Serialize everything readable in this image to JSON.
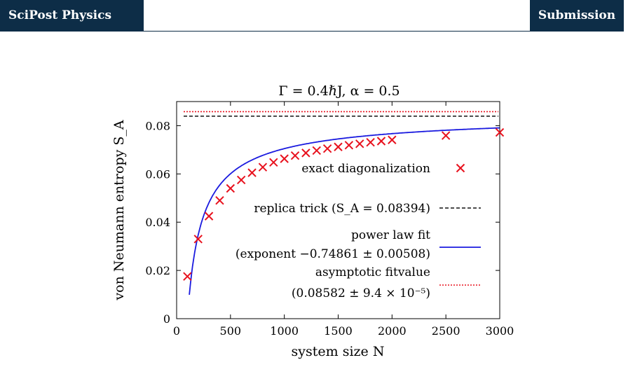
{
  "header": {
    "left_tag": "SciPost Physics",
    "right_tag": "Submission"
  },
  "chart_data": {
    "type": "scatter",
    "title": "Γ = 0.4ℏJ,  α = 0.5",
    "xlabel": "system size N",
    "ylabel": "von Neumann entropy S_A",
    "xlim": [
      0,
      3000
    ],
    "ylim": [
      0,
      0.09
    ],
    "xticks": [
      "0",
      "500",
      "1000",
      "1500",
      "2000",
      "2500",
      "3000"
    ],
    "yticks": [
      "0",
      "0.02",
      "0.04",
      "0.06",
      "0.08"
    ],
    "grid": false,
    "legend_position": "center-right",
    "series": [
      {
        "name": "exact diagonalization",
        "kind": "markers",
        "marker": "x",
        "color": "#e8121e",
        "x": [
          100,
          200,
          300,
          400,
          500,
          600,
          700,
          800,
          900,
          1000,
          1100,
          1200,
          1300,
          1400,
          1500,
          1600,
          1700,
          1800,
          1900,
          2000,
          2500,
          3000
        ],
        "y": [
          0.0175,
          0.033,
          0.0425,
          0.049,
          0.054,
          0.0575,
          0.0605,
          0.0628,
          0.0648,
          0.0663,
          0.0676,
          0.0687,
          0.0697,
          0.0705,
          0.0712,
          0.0719,
          0.0725,
          0.0731,
          0.0736,
          0.0741,
          0.0759,
          0.0772
        ]
      },
      {
        "name": "replica trick (S_A = 0.08394)",
        "kind": "hline",
        "style": "dashed",
        "color": "#111111",
        "value": 0.08394
      },
      {
        "name": "power law fit (exponent −0.74861 ± 0.00508)",
        "kind": "powerlaw",
        "style": "solid",
        "color": "#1a1adf",
        "asymptote": 0.08582,
        "exponent": -0.74861,
        "coefficient": 2.7,
        "x_start": 118
      },
      {
        "name": "asymptotic fitvalue (0.08582 ± 9.4 × 10⁻⁵)",
        "kind": "hline",
        "style": "dotted",
        "color": "#e8121e",
        "value": 0.08582
      }
    ],
    "legend": {
      "exact": "exact diagonalization",
      "replica": "replica trick (S_A = 0.08394)",
      "power_line1": "power law fit",
      "power_line2": "(exponent −0.74861 ± 0.00508)",
      "asym_line1": "asymptotic fitvalue",
      "asym_line2": "(0.08582 ± 9.4 × 10⁻⁵)"
    }
  }
}
